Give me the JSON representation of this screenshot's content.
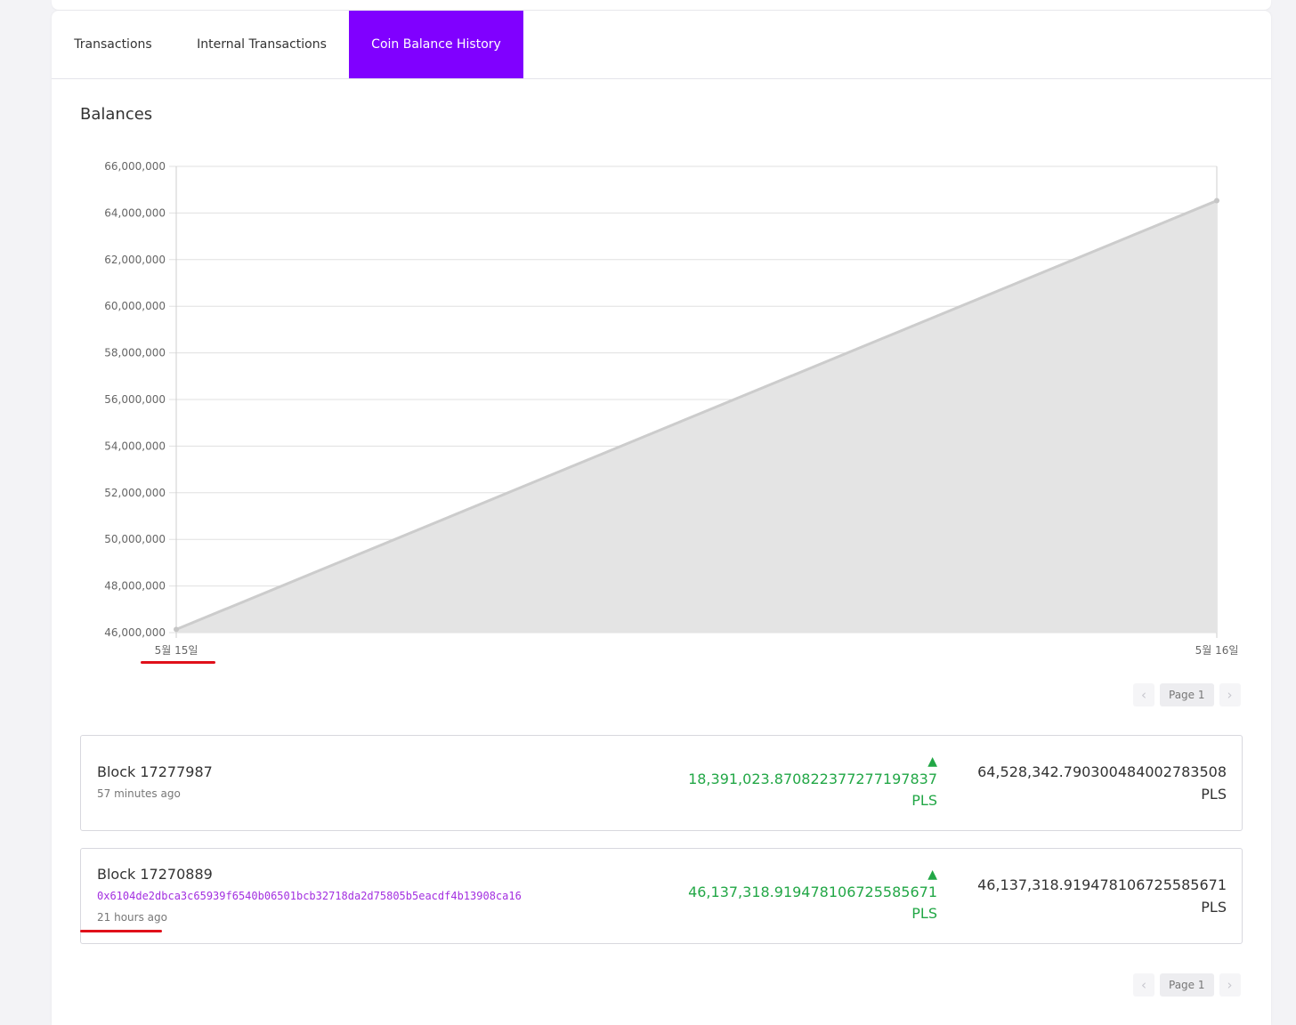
{
  "tabs": {
    "transactions": "Transactions",
    "internal": "Internal Transactions",
    "coin_balance": "Coin Balance History"
  },
  "section_title": "Balances",
  "chart_data": {
    "type": "area",
    "x": [
      "5월 15일",
      "5월 16일"
    ],
    "values": [
      46137318.9194781,
      64528342.79030048
    ],
    "ylim": [
      46000000,
      66000000
    ],
    "y_ticks": [
      "66,000,000",
      "64,000,000",
      "62,000,000",
      "60,000,000",
      "58,000,000",
      "56,000,000",
      "54,000,000",
      "52,000,000",
      "50,000,000",
      "48,000,000",
      "46,000,000"
    ],
    "grid": true,
    "colors": {
      "fill": "#e4e4e4",
      "line": "#cccccc",
      "grid": "#e0e0e0",
      "axis": "#cfcfcf"
    }
  },
  "pager": {
    "prev": "‹",
    "label": "Page 1",
    "next": "›"
  },
  "rows": [
    {
      "block": "Block 17277987",
      "ago": "57 minutes ago",
      "delta_icon": "▲",
      "delta_value": "18,391,023.870822377277197837",
      "delta_unit": "PLS",
      "total_value": "64,528,342.790300484002783508",
      "total_unit": "PLS"
    },
    {
      "block": "Block 17270889",
      "hash": "0x6104de2dbca3c65939f6540b06501bcb32718da2d75805b5eacdf4b13908ca16",
      "ago": "21 hours ago",
      "delta_icon": "▲",
      "delta_value": "46,137,318.919478106725585671",
      "delta_unit": "PLS",
      "total_value": "46,137,318.919478106725585671",
      "total_unit": "PLS"
    }
  ],
  "colors": {
    "accent": "#8000ff",
    "positive": "#22a746",
    "hash": "#a32fe0",
    "highlight": "#e0101a"
  }
}
